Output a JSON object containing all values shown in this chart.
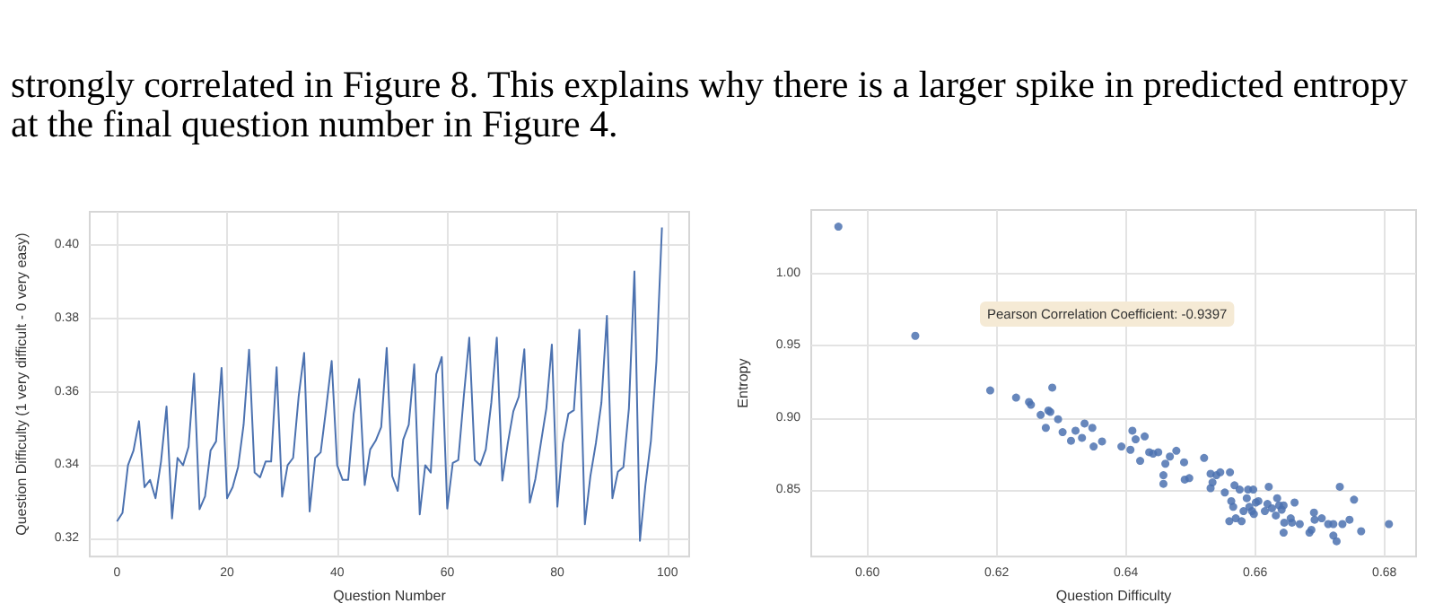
{
  "chart_data": [
    {
      "type": "line",
      "xlabel": "Question Number",
      "ylabel": "Question Difficulty (1 very difficult - 0 very easy)",
      "annotations": [
        "strongly correlated in Figure 8. This explains why there is a larger spike in predicted entropy at the final question number in Figure 4."
      ],
      "color": "#4c72b0",
      "marker": "none",
      "grid": true,
      "x": [
        0,
        1,
        2,
        3,
        4,
        5,
        6,
        7,
        8,
        9,
        10,
        11,
        12,
        13,
        14,
        15,
        16,
        17,
        18,
        19,
        20,
        21,
        22,
        23,
        24,
        25,
        26,
        27,
        28,
        29,
        30,
        31,
        32,
        33,
        34,
        35,
        36,
        37,
        38,
        39,
        40,
        41,
        42,
        43,
        44,
        45,
        46,
        47,
        48,
        49,
        50,
        51,
        52,
        53,
        54,
        55,
        56,
        57,
        58,
        59,
        60,
        61,
        62,
        63,
        64,
        65,
        66,
        67,
        68,
        69,
        70,
        71,
        72,
        73,
        74,
        75,
        76,
        77,
        78,
        79,
        80,
        81,
        82,
        83,
        84,
        85,
        86,
        87,
        88,
        89,
        90,
        91,
        92,
        93,
        94,
        95,
        96,
        97,
        98,
        99
      ],
      "values": [
        0.3247,
        0.327,
        0.34,
        0.344,
        0.352,
        0.334,
        0.336,
        0.331,
        0.341,
        0.356,
        0.3255,
        0.342,
        0.34,
        0.345,
        0.365,
        0.328,
        0.3315,
        0.344,
        0.3465,
        0.3665,
        0.331,
        0.334,
        0.3395,
        0.351,
        0.3715,
        0.338,
        0.3367,
        0.341,
        0.341,
        0.3667,
        0.3314,
        0.34,
        0.342,
        0.3587,
        0.3706,
        0.3274,
        0.342,
        0.3435,
        0.3555,
        0.3684,
        0.34,
        0.336,
        0.336,
        0.354,
        0.3635,
        0.3346,
        0.3443,
        0.3467,
        0.3504,
        0.372,
        0.337,
        0.333,
        0.347,
        0.351,
        0.3675,
        0.3266,
        0.34,
        0.338,
        0.3648,
        0.3695,
        0.3282,
        0.3406,
        0.3414,
        0.3587,
        0.3748,
        0.3414,
        0.34,
        0.3443,
        0.357,
        0.3748,
        0.3358,
        0.346,
        0.3547,
        0.3587,
        0.3716,
        0.3298,
        0.3362,
        0.346,
        0.3555,
        0.3729,
        0.3287,
        0.346,
        0.354,
        0.355,
        0.3769,
        0.3239,
        0.337,
        0.346,
        0.357,
        0.3807,
        0.331,
        0.3382,
        0.3395,
        0.3555,
        0.3928,
        0.3194,
        0.3346,
        0.3467,
        0.3684,
        0.4048
      ],
      "xlim": [
        -4.95,
        103.95
      ],
      "ylim": [
        0.3151,
        0.4091
      ],
      "xticks": [
        0,
        20,
        40,
        60,
        80,
        100
      ],
      "yticks": [
        {
          "value": 0.32,
          "label": "0.32"
        },
        {
          "value": 0.34,
          "label": "0.34"
        },
        {
          "value": 0.36,
          "label": "0.36"
        },
        {
          "value": 0.38,
          "label": "0.38"
        },
        {
          "value": 0.4,
          "label": "0.40"
        }
      ]
    },
    {
      "type": "scatter",
      "xlabel": "Question Difficulty",
      "ylabel": "Entropy",
      "annotations": [
        "Pearson Correlation Coefficient: -0.9397"
      ],
      "color": "#4c72b0",
      "marker": "circle",
      "grid": true,
      "x": [
        0.5955,
        0.6074,
        0.619,
        0.623,
        0.625,
        0.6253,
        0.6268,
        0.6276,
        0.628,
        0.6283,
        0.6286,
        0.6295,
        0.6302,
        0.6315,
        0.6322,
        0.6332,
        0.6336,
        0.6348,
        0.635,
        0.6363,
        0.6393,
        0.6407,
        0.641,
        0.6415,
        0.6422,
        0.6429,
        0.6436,
        0.6442,
        0.645,
        0.6458,
        0.6458,
        0.6461,
        0.6468,
        0.6478,
        0.649,
        0.6491,
        0.6498,
        0.6521,
        0.6531,
        0.6531,
        0.6534,
        0.654,
        0.6546,
        0.6553,
        0.656,
        0.6561,
        0.6563,
        0.6566,
        0.6568,
        0.657,
        0.6576,
        0.6579,
        0.6582,
        0.6587,
        0.6589,
        0.6591,
        0.6595,
        0.6597,
        0.6598,
        0.6601,
        0.6605,
        0.6615,
        0.6619,
        0.6621,
        0.6626,
        0.6632,
        0.6634,
        0.6637,
        0.6641,
        0.6644,
        0.6644,
        0.6645,
        0.6655,
        0.6657,
        0.6661,
        0.6669,
        0.6684,
        0.6687,
        0.6691,
        0.6692,
        0.6703,
        0.6713,
        0.6721,
        0.6721,
        0.6726,
        0.6731,
        0.6735,
        0.6746,
        0.6753,
        0.6764,
        0.6807
      ],
      "values": [
        1.033,
        0.957,
        0.919,
        0.914,
        0.911,
        0.909,
        0.902,
        0.893,
        0.905,
        0.904,
        0.921,
        0.899,
        0.89,
        0.884,
        0.891,
        0.886,
        0.896,
        0.893,
        0.88,
        0.8835,
        0.88,
        0.8777,
        0.891,
        0.885,
        0.87,
        0.887,
        0.876,
        0.875,
        0.876,
        0.86,
        0.854,
        0.868,
        0.873,
        0.877,
        0.869,
        0.857,
        0.858,
        0.872,
        0.861,
        0.851,
        0.855,
        0.86,
        0.862,
        0.848,
        0.828,
        0.862,
        0.842,
        0.838,
        0.853,
        0.83,
        0.85,
        0.828,
        0.835,
        0.844,
        0.85,
        0.838,
        0.835,
        0.85,
        0.833,
        0.841,
        0.842,
        0.835,
        0.84,
        0.852,
        0.837,
        0.832,
        0.844,
        0.839,
        0.836,
        0.839,
        0.82,
        0.827,
        0.83,
        0.827,
        0.841,
        0.826,
        0.82,
        0.822,
        0.834,
        0.829,
        0.83,
        0.826,
        0.826,
        0.818,
        0.814,
        0.852,
        0.826,
        0.829,
        0.843,
        0.821,
        0.826
      ],
      "xlim": [
        0.5913,
        0.6849
      ],
      "ylim": [
        0.8034,
        1.0446
      ],
      "xticks": [
        {
          "value": 0.6,
          "label": "0.60"
        },
        {
          "value": 0.62,
          "label": "0.62"
        },
        {
          "value": 0.64,
          "label": "0.64"
        },
        {
          "value": 0.66,
          "label": "0.66"
        },
        {
          "value": 0.68,
          "label": "0.68"
        }
      ],
      "yticks": [
        {
          "value": 0.85,
          "label": "0.85"
        },
        {
          "value": 0.9,
          "label": "0.90"
        },
        {
          "value": 0.95,
          "label": "0.95"
        },
        {
          "value": 1.0,
          "label": "1.00"
        }
      ]
    }
  ]
}
